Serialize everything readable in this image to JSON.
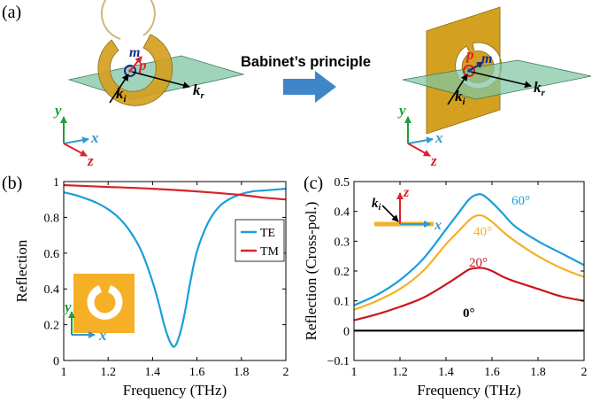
{
  "panel_labels": {
    "a": "(a)",
    "b": "(b)",
    "c": "(c)"
  },
  "schematic": {
    "principle_label": "Babinet’s principle",
    "left": {
      "m": "m",
      "p": "p",
      "ki": "k",
      "ki_sub": "i",
      "kr": "k",
      "kr_sub": "r"
    },
    "right": {
      "m": "m",
      "p": "p",
      "ki": "k",
      "ki_sub": "i",
      "kr": "k",
      "kr_sub": "r"
    },
    "axes": {
      "x": "x",
      "y": "y",
      "z": "z"
    },
    "colors": {
      "gold": "#d4a020",
      "plane": "#7fc6a4",
      "arrow": "#3f86c8",
      "red": "#d9232a",
      "navy": "#1a2a8a",
      "green": "#1f9e3a",
      "blue": "#3399cc"
    }
  },
  "chart_data": [
    {
      "type": "line",
      "xlabel": "Frequency (THz)",
      "ylabel": "Reflection",
      "xlim": [
        1,
        2
      ],
      "ylim": [
        0,
        1
      ],
      "xticks": [
        "1",
        "1.2",
        "1.4",
        "1.6",
        "1.8",
        "2"
      ],
      "yticks": [
        "0",
        "0.2",
        "0.4",
        "0.6",
        "0.8",
        "1"
      ],
      "legend": "middle-right",
      "series": [
        {
          "name": "TE",
          "color": "#1a9fd9",
          "x": [
            1.0,
            1.05,
            1.1,
            1.15,
            1.2,
            1.25,
            1.3,
            1.35,
            1.4,
            1.43,
            1.45,
            1.47,
            1.49,
            1.5,
            1.51,
            1.53,
            1.55,
            1.57,
            1.6,
            1.65,
            1.7,
            1.75,
            1.8,
            1.85,
            1.9,
            1.95,
            2.0
          ],
          "y": [
            0.94,
            0.925,
            0.905,
            0.88,
            0.845,
            0.795,
            0.72,
            0.61,
            0.44,
            0.31,
            0.21,
            0.13,
            0.08,
            0.08,
            0.1,
            0.18,
            0.3,
            0.44,
            0.61,
            0.77,
            0.86,
            0.905,
            0.93,
            0.945,
            0.95,
            0.955,
            0.96
          ]
        },
        {
          "name": "TM",
          "color": "#d9232a",
          "x": [
            1.0,
            1.2,
            1.4,
            1.6,
            1.8,
            1.9,
            2.0
          ],
          "y": [
            0.98,
            0.97,
            0.96,
            0.945,
            0.925,
            0.91,
            0.9
          ]
        }
      ],
      "inset": {
        "x": "x",
        "y": "y"
      }
    },
    {
      "type": "line",
      "xlabel": "Frequency (THz)",
      "ylabel": "Reflection (Cross-pol.)",
      "xlim": [
        1,
        2
      ],
      "ylim": [
        -0.1,
        0.5
      ],
      "xticks": [
        "1",
        "1.2",
        "1.4",
        "1.6",
        "1.8",
        "2"
      ],
      "yticks": [
        "−0.1",
        "0",
        "0.1",
        "0.2",
        "0.3",
        "0.4",
        "0.5"
      ],
      "series": [
        {
          "name": "60°",
          "color": "#1a9fd9",
          "x": [
            1.0,
            1.1,
            1.2,
            1.3,
            1.4,
            1.45,
            1.5,
            1.53,
            1.56,
            1.6,
            1.65,
            1.7,
            1.8,
            1.9,
            2.0
          ],
          "y": [
            0.085,
            0.12,
            0.17,
            0.24,
            0.34,
            0.39,
            0.44,
            0.455,
            0.455,
            0.43,
            0.39,
            0.35,
            0.3,
            0.26,
            0.22
          ]
        },
        {
          "name": "40°",
          "color": "#f5b027",
          "x": [
            1.0,
            1.1,
            1.2,
            1.3,
            1.4,
            1.45,
            1.5,
            1.53,
            1.56,
            1.6,
            1.65,
            1.7,
            1.8,
            1.9,
            2.0
          ],
          "y": [
            0.07,
            0.1,
            0.14,
            0.2,
            0.29,
            0.33,
            0.37,
            0.385,
            0.385,
            0.365,
            0.33,
            0.3,
            0.25,
            0.21,
            0.18
          ]
        },
        {
          "name": "20°",
          "color": "#c9161e",
          "x": [
            1.0,
            1.1,
            1.2,
            1.3,
            1.4,
            1.45,
            1.5,
            1.53,
            1.56,
            1.6,
            1.65,
            1.7,
            1.8,
            1.9,
            2.0
          ],
          "y": [
            0.035,
            0.055,
            0.08,
            0.11,
            0.155,
            0.18,
            0.205,
            0.21,
            0.21,
            0.2,
            0.18,
            0.165,
            0.14,
            0.115,
            0.1
          ]
        },
        {
          "name": "0°",
          "color": "#000000",
          "x": [
            1.0,
            2.0
          ],
          "y": [
            0.0,
            0.0
          ]
        }
      ],
      "inset": {
        "k": "k",
        "k_sub": "i",
        "z": "z",
        "x": "x"
      }
    }
  ]
}
